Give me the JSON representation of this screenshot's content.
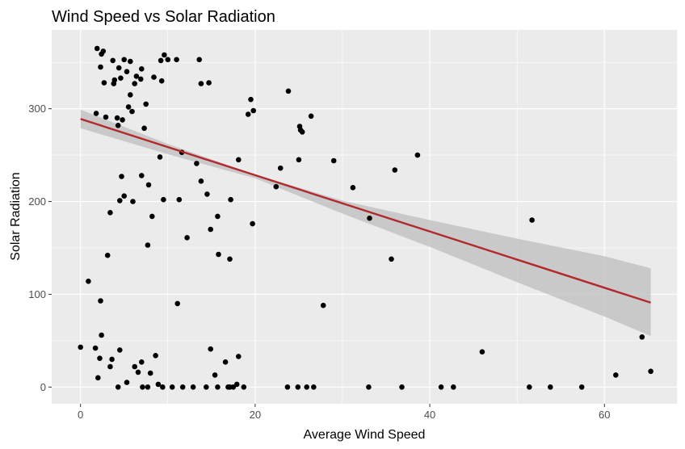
{
  "chart_data": {
    "type": "scatter",
    "title": "Wind Speed vs Solar Radiation",
    "xlabel": "Average Wind Speed",
    "ylabel": "Solar Radiation",
    "xlim": [
      -3.3,
      68.3
    ],
    "ylim": [
      -18,
      385
    ],
    "x_ticks": [
      0,
      20,
      40,
      60
    ],
    "y_ticks": [
      0,
      100,
      200,
      300
    ],
    "grid": true,
    "background": "#ebebeb",
    "grid_color": "#ffffff",
    "point_color": "#000000",
    "fit_color": "#b2292e",
    "ribbon_color": "#bebebe",
    "points": [
      [
        0.0,
        43
      ],
      [
        0.9,
        114
      ],
      [
        1.7,
        42
      ],
      [
        1.8,
        295
      ],
      [
        1.9,
        365
      ],
      [
        2.0,
        10
      ],
      [
        2.2,
        31
      ],
      [
        2.3,
        93
      ],
      [
        2.3,
        345
      ],
      [
        2.4,
        56
      ],
      [
        2.4,
        359
      ],
      [
        2.6,
        362
      ],
      [
        2.7,
        328
      ],
      [
        2.9,
        291
      ],
      [
        3.1,
        142
      ],
      [
        3.4,
        188
      ],
      [
        3.4,
        22
      ],
      [
        3.6,
        30
      ],
      [
        3.7,
        352
      ],
      [
        3.8,
        327
      ],
      [
        3.9,
        331
      ],
      [
        4.2,
        290
      ],
      [
        4.3,
        282
      ],
      [
        4.3,
        0
      ],
      [
        4.4,
        344
      ],
      [
        4.5,
        40
      ],
      [
        4.5,
        201
      ],
      [
        4.6,
        333
      ],
      [
        4.7,
        227
      ],
      [
        4.8,
        288
      ],
      [
        5.0,
        206
      ],
      [
        5.0,
        353
      ],
      [
        5.3,
        5
      ],
      [
        5.3,
        340
      ],
      [
        5.5,
        302
      ],
      [
        5.7,
        351
      ],
      [
        5.7,
        315
      ],
      [
        5.9,
        297
      ],
      [
        6.0,
        200
      ],
      [
        6.2,
        22
      ],
      [
        6.2,
        327
      ],
      [
        6.4,
        335
      ],
      [
        6.6,
        16
      ],
      [
        6.9,
        332
      ],
      [
        7.0,
        228
      ],
      [
        7.0,
        343
      ],
      [
        7.0,
        27
      ],
      [
        7.1,
        0
      ],
      [
        7.3,
        279
      ],
      [
        7.5,
        305
      ],
      [
        7.7,
        153
      ],
      [
        7.7,
        0
      ],
      [
        7.8,
        218
      ],
      [
        8.0,
        15
      ],
      [
        8.2,
        184
      ],
      [
        8.4,
        334
      ],
      [
        8.6,
        34
      ],
      [
        8.9,
        3
      ],
      [
        9.1,
        248
      ],
      [
        9.2,
        352
      ],
      [
        9.3,
        330
      ],
      [
        9.4,
        0
      ],
      [
        9.5,
        202
      ],
      [
        9.6,
        358
      ],
      [
        10.0,
        353
      ],
      [
        10.5,
        0
      ],
      [
        11.0,
        353
      ],
      [
        11.1,
        90
      ],
      [
        11.3,
        202
      ],
      [
        11.6,
        253
      ],
      [
        11.7,
        0
      ],
      [
        12.2,
        161
      ],
      [
        12.9,
        0
      ],
      [
        13.3,
        241
      ],
      [
        13.6,
        353
      ],
      [
        13.8,
        222
      ],
      [
        13.8,
        327
      ],
      [
        14.4,
        0
      ],
      [
        14.5,
        208
      ],
      [
        14.7,
        328
      ],
      [
        14.9,
        41
      ],
      [
        14.9,
        170
      ],
      [
        15.4,
        13
      ],
      [
        15.7,
        0
      ],
      [
        15.7,
        184
      ],
      [
        15.8,
        143
      ],
      [
        16.6,
        27
      ],
      [
        16.9,
        0
      ],
      [
        17.1,
        0
      ],
      [
        17.1,
        138
      ],
      [
        17.2,
        202
      ],
      [
        17.5,
        0
      ],
      [
        17.9,
        3
      ],
      [
        18.1,
        33
      ],
      [
        18.1,
        245
      ],
      [
        18.7,
        0
      ],
      [
        19.2,
        294
      ],
      [
        19.5,
        310
      ],
      [
        19.7,
        176
      ],
      [
        19.8,
        298
      ],
      [
        22.4,
        216
      ],
      [
        22.9,
        236
      ],
      [
        23.7,
        0
      ],
      [
        23.8,
        319
      ],
      [
        24.9,
        0
      ],
      [
        25.0,
        245
      ],
      [
        25.1,
        281
      ],
      [
        25.2,
        277
      ],
      [
        25.4,
        275
      ],
      [
        25.9,
        0
      ],
      [
        26.4,
        292
      ],
      [
        26.7,
        0
      ],
      [
        27.8,
        88
      ],
      [
        29.0,
        244
      ],
      [
        31.2,
        215
      ],
      [
        33.0,
        0
      ],
      [
        33.1,
        182
      ],
      [
        35.6,
        138
      ],
      [
        36.0,
        234
      ],
      [
        36.8,
        0
      ],
      [
        38.6,
        250
      ],
      [
        41.3,
        0
      ],
      [
        42.7,
        0
      ],
      [
        46.0,
        38
      ],
      [
        51.4,
        0
      ],
      [
        51.7,
        180
      ],
      [
        53.8,
        0
      ],
      [
        57.4,
        0
      ],
      [
        61.3,
        13
      ],
      [
        64.3,
        54
      ],
      [
        65.3,
        17
      ]
    ],
    "fit_line": [
      [
        0.0,
        289
      ],
      [
        65.3,
        91
      ]
    ],
    "ribbon_upper": [
      [
        0.0,
        299
      ],
      [
        10.0,
        262
      ],
      [
        20.0,
        229
      ],
      [
        30.0,
        201
      ],
      [
        40.0,
        180
      ],
      [
        50.0,
        160
      ],
      [
        60.0,
        141
      ],
      [
        65.3,
        128
      ]
    ],
    "ribbon_lower": [
      [
        0.0,
        279
      ],
      [
        10.0,
        251
      ],
      [
        20.0,
        225
      ],
      [
        30.0,
        187
      ],
      [
        40.0,
        151
      ],
      [
        50.0,
        113
      ],
      [
        60.0,
        76
      ],
      [
        65.3,
        55
      ]
    ]
  }
}
